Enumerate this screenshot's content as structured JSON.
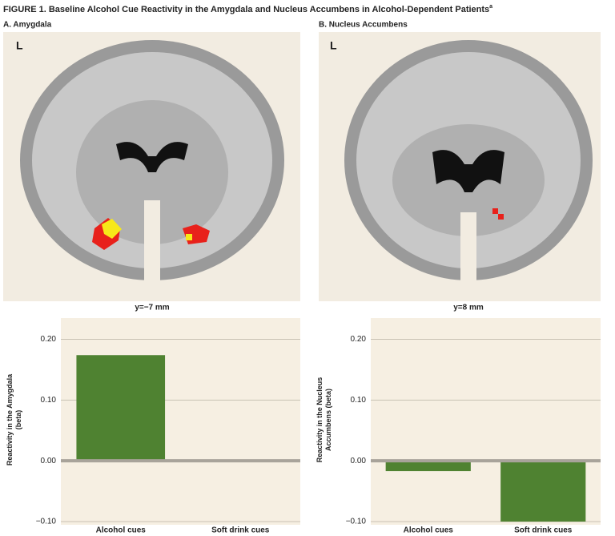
{
  "title": "FIGURE 1. Baseline Alcohol Cue Reactivity in the Amygdala and Nucleus Accumbens in Alcohol-Dependent Patients",
  "title_note": "a",
  "panels": [
    {
      "label": "A. Amygdala",
      "orientation": "L",
      "slice": "y=−7 mm"
    },
    {
      "label": "B. Nucleus Accumbens",
      "orientation": "L",
      "slice": "y=8 mm"
    }
  ],
  "chart_data": [
    {
      "type": "bar",
      "categories": [
        "Alcohol cues",
        "Soft drink cues"
      ],
      "values": [
        0.174,
        -0.002
      ],
      "color": "#4f8231",
      "ylim": [
        -0.1,
        0.235
      ],
      "yticks": [
        {
          "value": -0.1,
          "label": "−0.10"
        },
        {
          "value": 0,
          "label": "0.00"
        },
        {
          "value": 0.1,
          "label": "0.10"
        },
        {
          "value": 0.2,
          "label": "0.20"
        }
      ],
      "ylabel": [
        "Reactivity in the Amygdala",
        "(beta)"
      ],
      "grid": true
    },
    {
      "type": "bar",
      "categories": [
        "Alcohol cues",
        "Soft drink cues"
      ],
      "values": [
        -0.017,
        -0.1
      ],
      "color": "#4f8231",
      "ylim": [
        -0.1,
        0.235
      ],
      "yticks": [
        {
          "value": -0.1,
          "label": "−0.10"
        },
        {
          "value": 0,
          "label": "0.00"
        },
        {
          "value": 0.1,
          "label": "0.10"
        },
        {
          "value": 0.2,
          "label": "0.20"
        }
      ],
      "ylabel": [
        "Reactivity in the Nucleus",
        "Accumbens (beta)"
      ],
      "grid": true
    }
  ]
}
